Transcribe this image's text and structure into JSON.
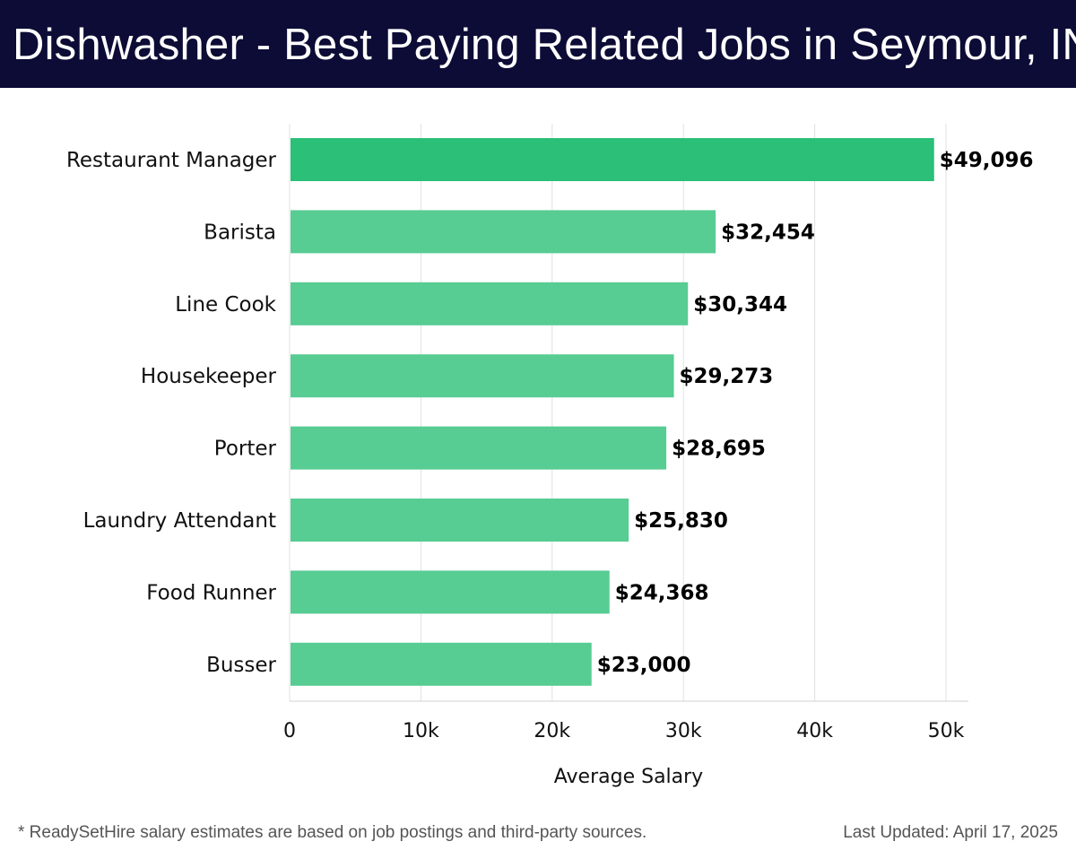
{
  "header": {
    "title": "Dishwasher - Best Paying Related Jobs in Seymour, IN"
  },
  "chart_data": {
    "type": "bar",
    "orientation": "horizontal",
    "categories": [
      "Restaurant Manager",
      "Barista",
      "Line Cook",
      "Housekeeper",
      "Porter",
      "Laundry Attendant",
      "Food Runner",
      "Busser"
    ],
    "values": [
      49096,
      32454,
      30344,
      29273,
      28695,
      25830,
      24368,
      23000
    ],
    "data_labels": [
      "$49,096",
      "$32,454",
      "$30,344",
      "$29,273",
      "$28,695",
      "$25,830",
      "$24,368",
      "$23,000"
    ],
    "xlabel": "Average Salary",
    "ylabel": "",
    "xlim": [
      0,
      50000
    ],
    "x_ticks": [
      0,
      10000,
      20000,
      30000,
      40000,
      50000
    ],
    "x_tick_labels": [
      "0",
      "10k",
      "20k",
      "30k",
      "40k",
      "50k"
    ],
    "grid": "vertical",
    "colors": {
      "top_bar": "#2bbf77",
      "bar": "#57cc93",
      "label": "#000000",
      "grid": "#e0e0e0"
    }
  },
  "footer": {
    "note": "* ReadySetHire salary estimates are based on job postings and third-party sources.",
    "last_updated": "Last Updated: April 17, 2025"
  }
}
